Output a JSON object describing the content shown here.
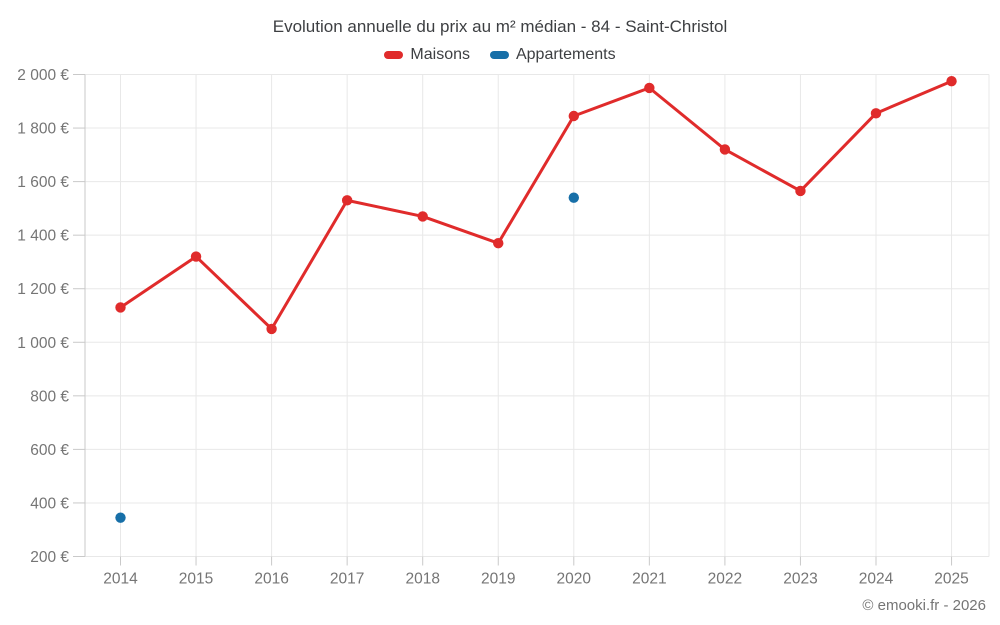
{
  "title": "Evolution annuelle du prix au m² médian - 84 - Saint-Christol",
  "copyright": "© emooki.fr - 2026",
  "legend": [
    {
      "label": "Maisons",
      "color": "#e02b2b"
    },
    {
      "label": "Appartements",
      "color": "#176fa8"
    }
  ],
  "colors": {
    "maisons": "#e02b2b",
    "appartements": "#176fa8",
    "gridline": "#e8e8e8",
    "axis": "#c9c9c9",
    "tick_label": "#757575",
    "title_text": "#3d3f42"
  },
  "chart_data": {
    "type": "line",
    "title": "Evolution annuelle du prix au m² médian - 84 - Saint-Christol",
    "xlabel": "",
    "ylabel": "",
    "categories": [
      "2014",
      "2015",
      "2016",
      "2017",
      "2018",
      "2019",
      "2020",
      "2021",
      "2022",
      "2023",
      "2024",
      "2025"
    ],
    "series": [
      {
        "name": "Maisons",
        "color": "#e02b2b",
        "values": [
          1130,
          1320,
          1050,
          1530,
          1470,
          1370,
          1845,
          1950,
          1720,
          1565,
          1855,
          1975
        ]
      },
      {
        "name": "Appartements",
        "color": "#176fa8",
        "values": [
          345,
          null,
          null,
          null,
          null,
          null,
          1540,
          null,
          null,
          null,
          null,
          null
        ]
      }
    ],
    "ylim": [
      200,
      2000
    ],
    "ytick_values": [
      200,
      400,
      600,
      800,
      1000,
      1200,
      1400,
      1600,
      1800,
      2000
    ],
    "ytick_labels": [
      "200 €",
      "400 €",
      "600 €",
      "800 €",
      "1 000 €",
      "1 200 €",
      "1 400 €",
      "1 600 €",
      "1 800 €",
      "2 000 €"
    ],
    "grid": true,
    "legend_position": "top"
  }
}
